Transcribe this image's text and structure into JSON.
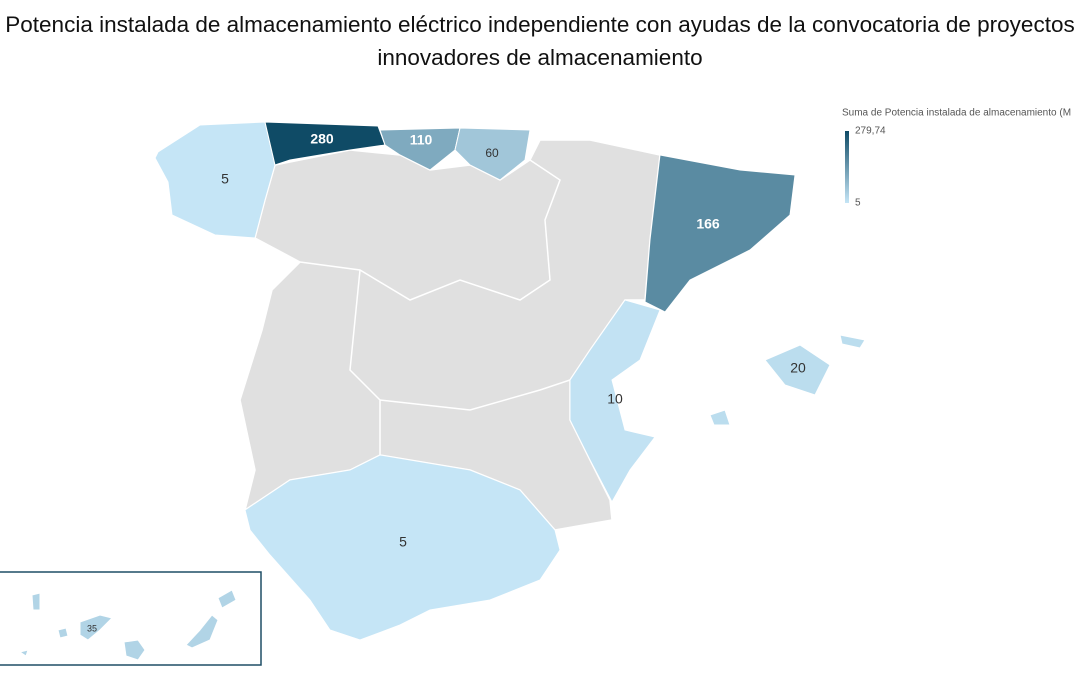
{
  "chart_data": {
    "type": "choropleth",
    "title": "Potencia instalada de almacenamiento eléctrico independiente con ayudas de la convocatoria de proyectos innovadores de almacenamiento",
    "legend_title": "Suma de Potencia instalada de almacenamiento (M",
    "legend_ticks": [
      {
        "value": 279.74,
        "label": "279,74"
      },
      5
    ],
    "colors": [
      "#c5e5f6",
      "#0f4b66"
    ],
    "values": [
      5,
      280,
      110,
      60,
      166,
      10,
      20,
      5,
      35
    ]
  }
}
